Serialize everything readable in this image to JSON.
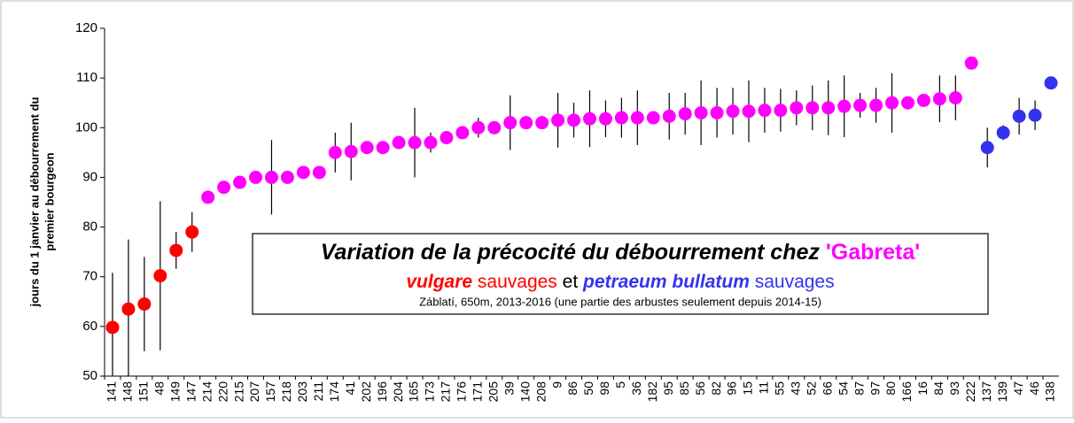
{
  "chart_data": {
    "type": "dot_errorbar",
    "title": [
      "Variation de la précocité du débourrement chez ",
      "'Gabreta'"
    ],
    "subtitle": [
      "vulgare",
      " sauvages",
      " et ",
      "petraeum bullatum",
      " sauvages"
    ],
    "note": "Záblatí, 650m, 2013-2016 (une partie des arbustes seulement depuis 2014-15)",
    "y_label": [
      "jours du 1 janvier au débourrement du",
      "premier bourgeon"
    ],
    "categories": [
      "141",
      "148",
      "151",
      "48",
      "149",
      "147",
      "214",
      "220",
      "215",
      "207",
      "157",
      "218",
      "203",
      "211",
      "174",
      "41",
      "202",
      "196",
      "204",
      "165",
      "173",
      "217",
      "176",
      "171",
      "205",
      "39",
      "140",
      "208",
      "9",
      "86",
      "50",
      "98",
      "5",
      "36",
      "182",
      "95",
      "85",
      "56",
      "82",
      "96",
      "15",
      "11",
      "55",
      "43",
      "52",
      "66",
      "54",
      "87",
      "97",
      "80",
      "166",
      "16",
      "84",
      "93",
      "222",
      "137",
      "139",
      "47",
      "46",
      "138"
    ],
    "values": [
      59.8,
      63.5,
      64.5,
      70.2,
      75.3,
      79,
      86,
      88,
      89,
      90,
      90,
      90,
      91,
      91,
      95,
      95.2,
      96,
      96,
      97,
      97,
      97,
      98,
      99,
      100,
      100,
      101,
      101,
      101,
      101.5,
      101.5,
      101.8,
      101.8,
      102,
      102,
      102,
      102.3,
      102.8,
      103,
      103,
      103.3,
      103.3,
      103.5,
      103.5,
      104,
      104,
      104,
      104.3,
      104.5,
      104.5,
      105,
      105,
      105.5,
      105.8,
      106,
      113,
      96,
      99,
      102.3,
      102.5,
      109
    ],
    "errors": [
      11,
      14,
      9.5,
      15,
      3.7,
      4,
      0,
      0,
      0.5,
      0,
      7.5,
      0,
      0.5,
      0.5,
      4,
      5.8,
      0.5,
      0,
      0.5,
      7,
      2,
      0.5,
      0.5,
      2,
      0.5,
      5.5,
      0.5,
      0.5,
      5.5,
      3.5,
      5.7,
      3.7,
      4,
      5.5,
      0.5,
      4.7,
      4.2,
      6.5,
      5,
      4.7,
      6.2,
      4.5,
      4.3,
      3.5,
      4.5,
      5.5,
      6.2,
      2.5,
      3.5,
      6,
      0.5,
      0.5,
      4.7,
      4.5,
      0,
      4,
      1.5,
      3.7,
      3,
      1
    ],
    "point_colors": [
      "#ff0000",
      "#ff0000",
      "#ff0000",
      "#ff0000",
      "#ff0000",
      "#ff0000",
      "#ff00ff",
      "#ff00ff",
      "#ff00ff",
      "#ff00ff",
      "#ff00ff",
      "#ff00ff",
      "#ff00ff",
      "#ff00ff",
      "#ff00ff",
      "#ff00ff",
      "#ff00ff",
      "#ff00ff",
      "#ff00ff",
      "#ff00ff",
      "#ff00ff",
      "#ff00ff",
      "#ff00ff",
      "#ff00ff",
      "#ff00ff",
      "#ff00ff",
      "#ff00ff",
      "#ff00ff",
      "#ff00ff",
      "#ff00ff",
      "#ff00ff",
      "#ff00ff",
      "#ff00ff",
      "#ff00ff",
      "#ff00ff",
      "#ff00ff",
      "#ff00ff",
      "#ff00ff",
      "#ff00ff",
      "#ff00ff",
      "#ff00ff",
      "#ff00ff",
      "#ff00ff",
      "#ff00ff",
      "#ff00ff",
      "#ff00ff",
      "#ff00ff",
      "#ff00ff",
      "#ff00ff",
      "#ff00ff",
      "#ff00ff",
      "#ff00ff",
      "#ff00ff",
      "#ff00ff",
      "#ff00ff",
      "#3333ee",
      "#3333ee",
      "#3333ee",
      "#3333ee",
      "#3333ee"
    ],
    "ylim": [
      50,
      120
    ],
    "yticks": [
      50,
      60,
      70,
      80,
      90,
      100,
      110,
      120
    ],
    "grid": false
  }
}
